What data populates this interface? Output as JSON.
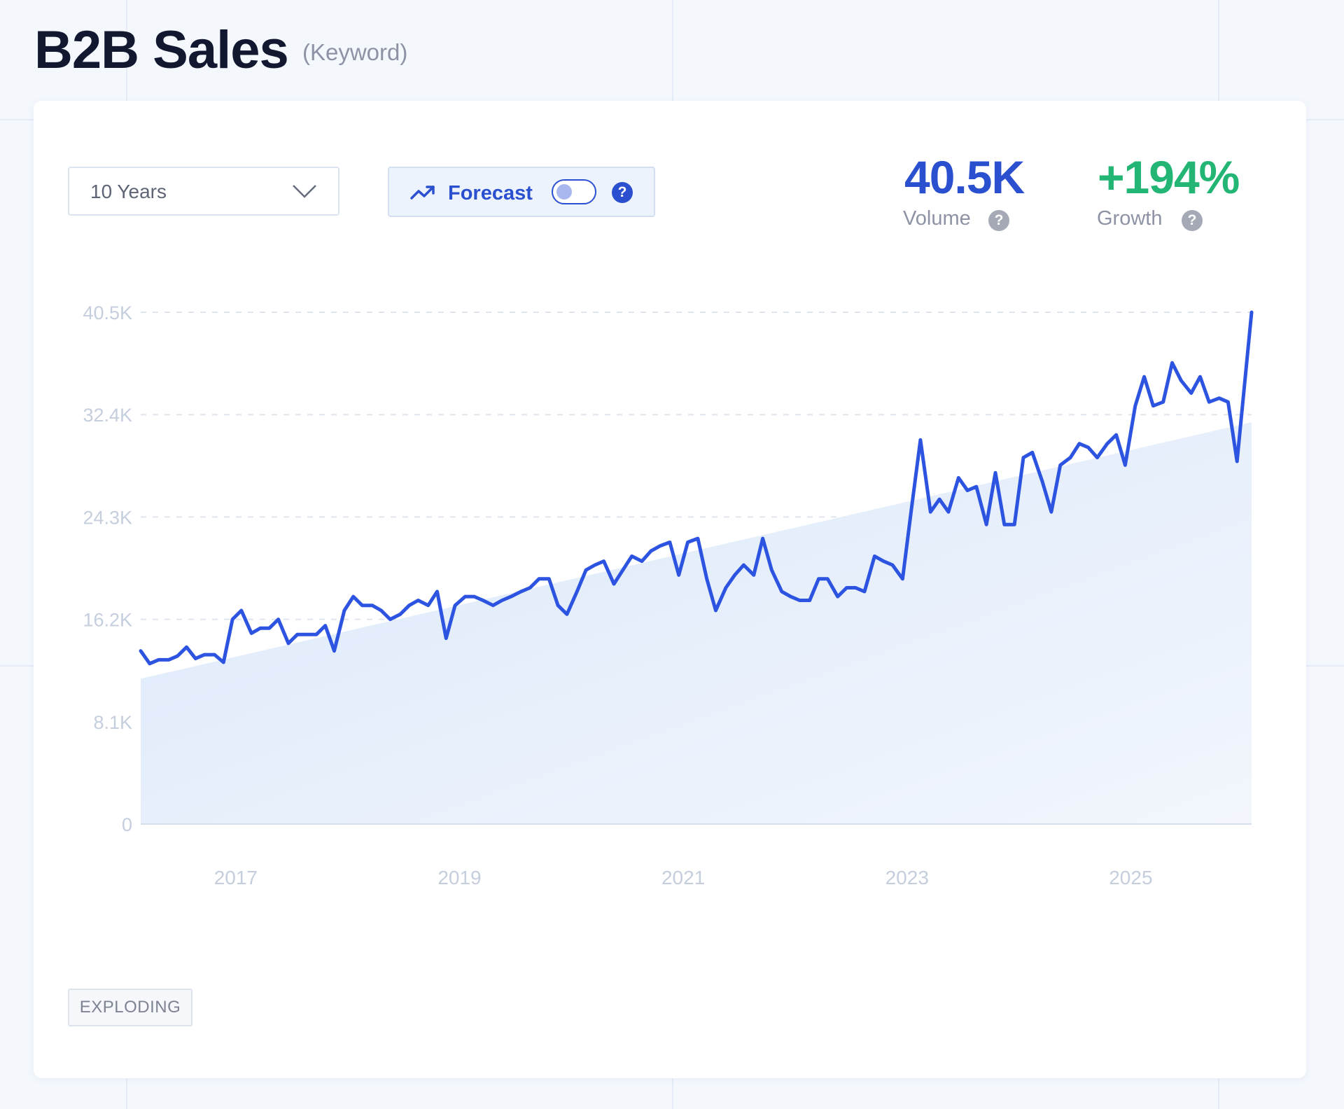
{
  "header": {
    "title": "B2B Sales",
    "type_label": "(Keyword)"
  },
  "controls": {
    "range_label": "10 Years",
    "forecast_label": "Forecast",
    "forecast_enabled": false,
    "chevron_icon": "chevron-down-icon",
    "trend_icon": "trending-up-icon",
    "help_icon": "question-mark-icon"
  },
  "stats": {
    "volume_value": "40.5K",
    "volume_label": "Volume",
    "growth_value": "+194%",
    "growth_label": "Growth"
  },
  "badge": {
    "label": "EXPLODING"
  },
  "colors": {
    "line": "#2c54e0",
    "accent_blue": "#2a4fcf",
    "growth_green": "#22b573",
    "grid": "#dfe5ee",
    "tick": "#c5cedd",
    "area_top": "#dbe8fa",
    "area_bottom": "#eef4fc"
  },
  "chart_data": {
    "type": "line",
    "title": "",
    "xlabel": "",
    "ylabel": "",
    "ylim": [
      0,
      40500
    ],
    "y_ticks": [
      {
        "value": 0,
        "label": "0"
      },
      {
        "value": 8100,
        "label": "8.1K"
      },
      {
        "value": 16200,
        "label": "16.2K"
      },
      {
        "value": 24300,
        "label": "24.3K"
      },
      {
        "value": 32400,
        "label": "32.4K"
      },
      {
        "value": 40500,
        "label": "40.5K"
      }
    ],
    "xlim": [
      2016.15,
      2026.08
    ],
    "x_ticks": [
      {
        "value": 2017,
        "label": "2017"
      },
      {
        "value": 2019,
        "label": "2019"
      },
      {
        "value": 2021,
        "label": "2021"
      },
      {
        "value": 2023,
        "label": "2023"
      },
      {
        "value": 2025,
        "label": "2025"
      }
    ],
    "grid": true,
    "legend": "none",
    "series": [
      {
        "values": [
          [
            2016.15,
            13700
          ],
          [
            2016.23,
            12700
          ],
          [
            2016.31,
            13000
          ],
          [
            2016.4,
            13000
          ],
          [
            2016.48,
            13300
          ],
          [
            2016.56,
            14000
          ],
          [
            2016.64,
            13100
          ],
          [
            2016.72,
            13400
          ],
          [
            2016.81,
            13400
          ],
          [
            2016.89,
            12800
          ],
          [
            2016.97,
            16200
          ],
          [
            2017.05,
            16900
          ],
          [
            2017.14,
            15100
          ],
          [
            2017.22,
            15500
          ],
          [
            2017.3,
            15500
          ],
          [
            2017.38,
            16200
          ],
          [
            2017.47,
            14300
          ],
          [
            2017.55,
            15000
          ],
          [
            2017.63,
            15000
          ],
          [
            2017.72,
            15000
          ],
          [
            2017.8,
            15700
          ],
          [
            2017.88,
            13700
          ],
          [
            2017.97,
            16900
          ],
          [
            2018.05,
            18000
          ],
          [
            2018.13,
            17300
          ],
          [
            2018.22,
            17300
          ],
          [
            2018.3,
            16900
          ],
          [
            2018.38,
            16200
          ],
          [
            2018.47,
            16600
          ],
          [
            2018.55,
            17300
          ],
          [
            2018.63,
            17700
          ],
          [
            2018.72,
            17300
          ],
          [
            2018.8,
            18400
          ],
          [
            2018.88,
            14700
          ],
          [
            2018.96,
            17300
          ],
          [
            2019.05,
            18000
          ],
          [
            2019.13,
            18000
          ],
          [
            2019.21,
            17700
          ],
          [
            2019.3,
            17300
          ],
          [
            2019.38,
            17700
          ],
          [
            2019.46,
            18000
          ],
          [
            2019.55,
            18400
          ],
          [
            2019.63,
            18700
          ],
          [
            2019.71,
            19400
          ],
          [
            2019.8,
            19400
          ],
          [
            2019.88,
            17300
          ],
          [
            2019.96,
            16600
          ],
          [
            2020.05,
            18400
          ],
          [
            2020.13,
            20100
          ],
          [
            2020.21,
            20500
          ],
          [
            2020.29,
            20800
          ],
          [
            2020.38,
            19000
          ],
          [
            2020.46,
            20100
          ],
          [
            2020.54,
            21200
          ],
          [
            2020.63,
            20800
          ],
          [
            2020.71,
            21600
          ],
          [
            2020.79,
            22000
          ],
          [
            2020.88,
            22300
          ],
          [
            2020.96,
            19700
          ],
          [
            2021.04,
            22300
          ],
          [
            2021.13,
            22600
          ],
          [
            2021.21,
            19400
          ],
          [
            2021.29,
            16900
          ],
          [
            2021.38,
            18700
          ],
          [
            2021.46,
            19700
          ],
          [
            2021.54,
            20500
          ],
          [
            2021.63,
            19700
          ],
          [
            2021.71,
            22600
          ],
          [
            2021.79,
            20100
          ],
          [
            2021.88,
            18400
          ],
          [
            2021.96,
            18000
          ],
          [
            2022.04,
            17700
          ],
          [
            2022.13,
            17700
          ],
          [
            2022.21,
            19400
          ],
          [
            2022.29,
            19400
          ],
          [
            2022.38,
            18000
          ],
          [
            2022.46,
            18700
          ],
          [
            2022.54,
            18700
          ],
          [
            2022.62,
            18400
          ],
          [
            2022.71,
            21200
          ],
          [
            2022.79,
            20800
          ],
          [
            2022.87,
            20500
          ],
          [
            2022.96,
            19400
          ],
          [
            2023.04,
            25000
          ],
          [
            2023.12,
            30400
          ],
          [
            2023.21,
            24700
          ],
          [
            2023.29,
            25700
          ],
          [
            2023.37,
            24700
          ],
          [
            2023.46,
            27400
          ],
          [
            2023.54,
            26400
          ],
          [
            2023.62,
            26700
          ],
          [
            2023.71,
            23700
          ],
          [
            2023.79,
            27800
          ],
          [
            2023.87,
            23700
          ],
          [
            2023.96,
            23700
          ],
          [
            2024.04,
            29000
          ],
          [
            2024.12,
            29400
          ],
          [
            2024.21,
            27100
          ],
          [
            2024.29,
            24700
          ],
          [
            2024.37,
            28400
          ],
          [
            2024.46,
            29000
          ],
          [
            2024.54,
            30100
          ],
          [
            2024.62,
            29800
          ],
          [
            2024.7,
            29000
          ],
          [
            2024.79,
            30100
          ],
          [
            2024.87,
            30800
          ],
          [
            2024.95,
            28400
          ],
          [
            2025.04,
            33100
          ],
          [
            2025.12,
            35400
          ],
          [
            2025.2,
            33100
          ],
          [
            2025.29,
            33400
          ],
          [
            2025.37,
            36500
          ],
          [
            2025.45,
            35100
          ],
          [
            2025.54,
            34100
          ],
          [
            2025.62,
            35400
          ],
          [
            2025.7,
            33400
          ],
          [
            2025.79,
            33700
          ],
          [
            2025.87,
            33400
          ],
          [
            2025.95,
            28700
          ],
          [
            2026.08,
            40500
          ]
        ]
      }
    ],
    "trend_area": {
      "start": [
        2016.15,
        11500
      ],
      "end": [
        2026.08,
        31800
      ]
    }
  }
}
